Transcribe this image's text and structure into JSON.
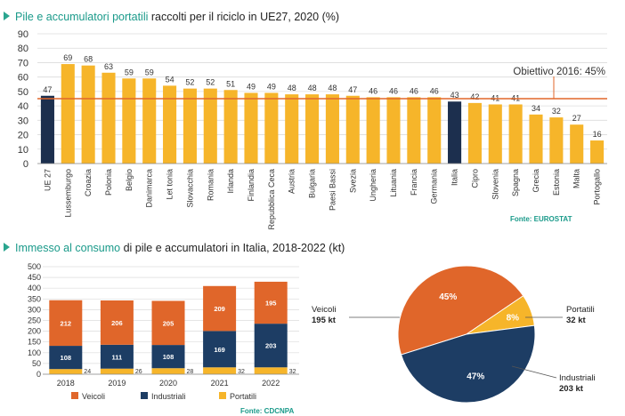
{
  "chart_data": [
    {
      "type": "bar",
      "title_highlight": "Pile e accumulatori portatili",
      "title_rest": " raccolti per il riciclo in UE27, 2020 (%)",
      "categories": [
        "UE 27",
        "Lussemburgo",
        "Croazia",
        "Polonia",
        "Belgio",
        "Danimarca",
        "Let tonia",
        "Slovacchia",
        "Romania",
        "Irlanda",
        "Finlandia",
        "Repubblica Ceca",
        "Austria",
        "Bulgaria",
        "Paesi Bassi",
        "Svezia",
        "Ungheria",
        "Lituania",
        "Francia",
        "Germania",
        "Italia",
        "Cipro",
        "Slovenia",
        "Spagna",
        "Grecia",
        "Estonia",
        "Malta",
        "Portogallo"
      ],
      "values": [
        47,
        69,
        68,
        63,
        59,
        59,
        54,
        52,
        52,
        51,
        49,
        49,
        48,
        48,
        48,
        47,
        46,
        46,
        46,
        46,
        43,
        42,
        41,
        41,
        34,
        32,
        27,
        16
      ],
      "highlight_categories": [
        "UE 27",
        "Italia"
      ],
      "ylim": [
        0,
        90
      ],
      "yticks": [
        0,
        10,
        20,
        30,
        40,
        50,
        60,
        70,
        80,
        90
      ],
      "grid": true,
      "target_line": {
        "value": 45,
        "label": "Obiettivo 2016: 45%"
      },
      "colors": {
        "default": "#f6b52a",
        "highlight": "#1c2f4e",
        "target": "#e0662a",
        "grid": "#dcdcdc"
      },
      "source": "Fonte: EUROSTAT"
    },
    {
      "type": "bar",
      "stacked": true,
      "title_highlight": "Immesso al consumo",
      "title_rest": " di pile e accumulatori in Italia, 2018-2022 (kt)",
      "categories": [
        "2018",
        "2019",
        "2020",
        "2021",
        "2022"
      ],
      "series": [
        {
          "name": "Portatili",
          "values": [
            24,
            26,
            28,
            32,
            32
          ],
          "color": "#f6b52a"
        },
        {
          "name": "Industriali",
          "values": [
            108,
            111,
            108,
            169,
            203
          ],
          "color": "#1d3d64"
        },
        {
          "name": "Veicoli",
          "values": [
            212,
            206,
            205,
            209,
            195
          ],
          "color": "#e0662a"
        }
      ],
      "ylim": [
        0,
        500
      ],
      "yticks": [
        0,
        50,
        100,
        150,
        200,
        250,
        300,
        350,
        400,
        450,
        500
      ],
      "legend_order": [
        "Veicoli",
        "Industriali",
        "Portatili"
      ],
      "legend": "bottom",
      "grid": true,
      "source": "Fonte: CDCNPA"
    },
    {
      "type": "pie",
      "slices": [
        {
          "name": "Veicoli",
          "value": 195,
          "value_label": "195 kt",
          "pct_label": "45%",
          "color": "#e0662a"
        },
        {
          "name": "Industriali",
          "value": 203,
          "value_label": "203 kt",
          "pct_label": "47%",
          "color": "#1d3d64"
        },
        {
          "name": "Portatili",
          "value": 32,
          "value_label": "32 kt",
          "pct_label": "8%",
          "color": "#f6b52a"
        }
      ]
    }
  ]
}
